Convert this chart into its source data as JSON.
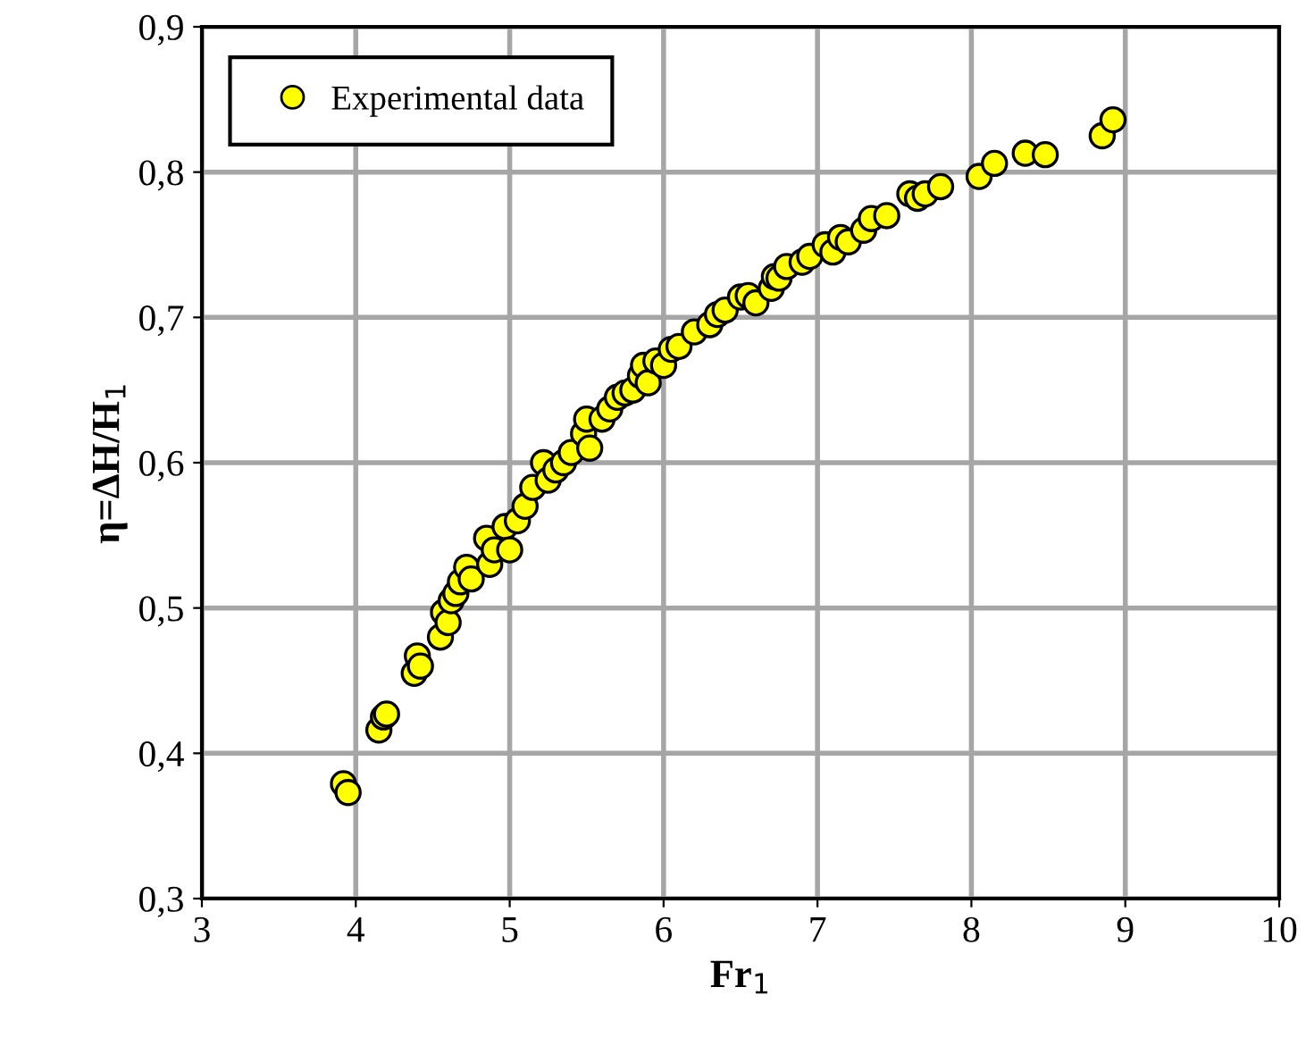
{
  "chart_data": {
    "type": "scatter",
    "xlabel": "Fr$_{1}$",
    "ylabel": "η=ΔH/H$_{1}$",
    "x": [
      3.92,
      3.95,
      4.15,
      4.18,
      4.2,
      4.38,
      4.4,
      4.42,
      4.55,
      4.57,
      4.6,
      4.62,
      4.65,
      4.68,
      4.72,
      4.75,
      4.85,
      4.87,
      4.9,
      4.97,
      5.0,
      5.05,
      5.1,
      5.15,
      5.22,
      5.25,
      5.3,
      5.35,
      5.4,
      5.48,
      5.5,
      5.52,
      5.6,
      5.65,
      5.7,
      5.75,
      5.8,
      5.85,
      5.87,
      5.9,
      5.95,
      6.0,
      6.05,
      6.1,
      6.2,
      6.3,
      6.35,
      6.4,
      6.5,
      6.55,
      6.6,
      6.7,
      6.72,
      6.75,
      6.8,
      6.9,
      6.95,
      7.05,
      7.1,
      7.15,
      7.2,
      7.3,
      7.35,
      7.45,
      7.6,
      7.65,
      7.7,
      7.8,
      8.05,
      8.15,
      8.35,
      8.48,
      8.85,
      8.92
    ],
    "series": [
      {
        "name": "Experimental data",
        "color": "#ffff00",
        "values": [
          0.379,
          0.373,
          0.416,
          0.425,
          0.427,
          0.455,
          0.467,
          0.46,
          0.48,
          0.497,
          0.49,
          0.505,
          0.51,
          0.518,
          0.528,
          0.52,
          0.548,
          0.53,
          0.54,
          0.556,
          0.54,
          0.56,
          0.57,
          0.583,
          0.6,
          0.588,
          0.595,
          0.6,
          0.607,
          0.62,
          0.63,
          0.61,
          0.63,
          0.637,
          0.645,
          0.648,
          0.65,
          0.66,
          0.667,
          0.655,
          0.67,
          0.667,
          0.678,
          0.68,
          0.69,
          0.695,
          0.702,
          0.705,
          0.714,
          0.715,
          0.71,
          0.72,
          0.728,
          0.727,
          0.735,
          0.738,
          0.742,
          0.75,
          0.745,
          0.755,
          0.752,
          0.76,
          0.768,
          0.77,
          0.785,
          0.782,
          0.785,
          0.79,
          0.797,
          0.806,
          0.813,
          0.812,
          0.825,
          0.836
        ]
      }
    ],
    "xlim": [
      3,
      10
    ],
    "xticks": [
      3,
      4,
      5,
      6,
      7,
      8,
      9,
      10
    ],
    "ylim": [
      0.3,
      0.9
    ],
    "yticks": [
      {
        "value": 0.3,
        "label": "0,3"
      },
      {
        "value": 0.4,
        "label": "0,4"
      },
      {
        "value": 0.5,
        "label": "0,5"
      },
      {
        "value": 0.6,
        "label": "0,6"
      },
      {
        "value": 0.7,
        "label": "0,7"
      },
      {
        "value": 0.8,
        "label": "0,8"
      },
      {
        "value": 0.9,
        "label": "0,9"
      }
    ],
    "grid": true,
    "legend": "top left",
    "marker": "circle"
  }
}
